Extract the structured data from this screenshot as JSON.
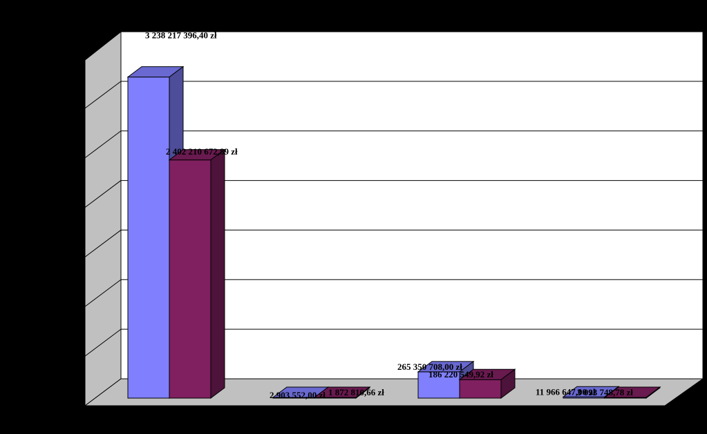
{
  "chart_data": {
    "type": "bar",
    "title": "",
    "xlabel": "",
    "ylabel": "",
    "categories": [
      "",
      "",
      "",
      ""
    ],
    "ylim": [
      0,
      3500000000
    ],
    "grid": true,
    "series": [
      {
        "color": "#8080ff",
        "values": [
          3238217396.4,
          2903552.0,
          265350708.0,
          11966647.0
        ],
        "labels": [
          "3 238 217 396,40 zł",
          "2 903 552,00 zł",
          "265 350 708,00 zł",
          "11 966 647,00 zł"
        ]
      },
      {
        "color": "#802060",
        "values": [
          2402210672.89,
          1872810.66,
          186220549.92,
          3093748.78
        ],
        "labels": [
          "2 402 210 672,89 zł",
          "1 872 810,66 zł",
          "186 220 549,92 zł",
          "3 093 748,78 zł"
        ]
      }
    ]
  }
}
